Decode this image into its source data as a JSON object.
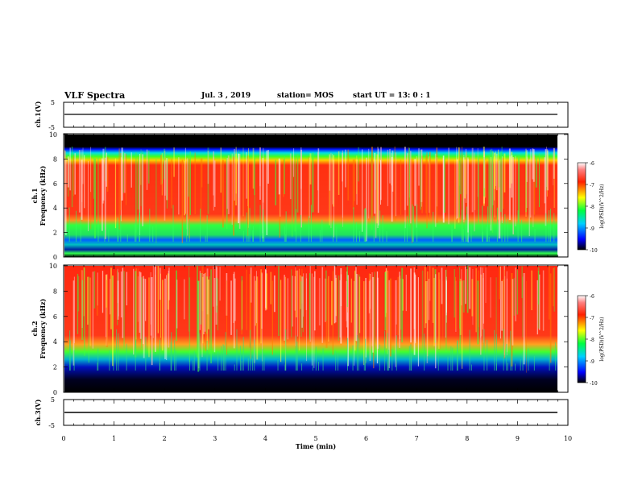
{
  "header": {
    "title": "VLF Spectra",
    "date": "Jul. 3 , 2019",
    "station": "station= MOS",
    "start": "start UT = 13: 0 : 1"
  },
  "chart_data": [
    {
      "type": "line",
      "panel": "ch1-waveform",
      "xlabel": "",
      "ylabel": "ch.1(V)",
      "xlim": [
        0,
        10
      ],
      "ylim": [
        -5,
        5
      ],
      "yticks": [
        "5",
        "-5"
      ],
      "series": [
        {
          "x": [
            0,
            9.8
          ],
          "values": [
            0,
            0
          ]
        }
      ]
    },
    {
      "type": "heatmap",
      "panel": "ch1-spectrogram",
      "ylabel_line1": "ch.1",
      "ylabel_line2": "Frequency (kHz)",
      "xlim": [
        0,
        9.8
      ],
      "ylim": [
        0,
        10
      ],
      "yticks": [
        "0",
        "2",
        "4",
        "6",
        "8",
        "10"
      ],
      "colorbar": {
        "label": "log(PSD)(V^2/Hz)",
        "ticks": [
          "-6",
          "-7",
          "-8",
          "-9",
          "-10"
        ],
        "range": [
          -10,
          -6
        ]
      }
    },
    {
      "type": "heatmap",
      "panel": "ch2-spectrogram",
      "ylabel_line1": "ch.2",
      "ylabel_line2": "Frequency (kHz)",
      "xlim": [
        0,
        9.8
      ],
      "ylim": [
        0,
        10
      ],
      "yticks": [
        "0",
        "2",
        "4",
        "6",
        "8",
        "10"
      ],
      "colorbar": {
        "label": "log(PSD)(V^2/Hz)",
        "ticks": [
          "-6",
          "-7",
          "-8",
          "-9",
          "-10"
        ],
        "range": [
          -10,
          -6
        ]
      }
    },
    {
      "type": "line",
      "panel": "ch3-waveform",
      "xlabel": "Time (min)",
      "ylabel": "ch.3(V)",
      "xlim": [
        0,
        10
      ],
      "ylim": [
        -5,
        5
      ],
      "yticks": [
        "5",
        "-5"
      ],
      "xticks": [
        "0",
        "1",
        "2",
        "3",
        "4",
        "5",
        "6",
        "7",
        "8",
        "9",
        "10"
      ],
      "series": [
        {
          "x": [
            0,
            9.8
          ],
          "values": [
            0,
            0
          ]
        }
      ]
    }
  ]
}
